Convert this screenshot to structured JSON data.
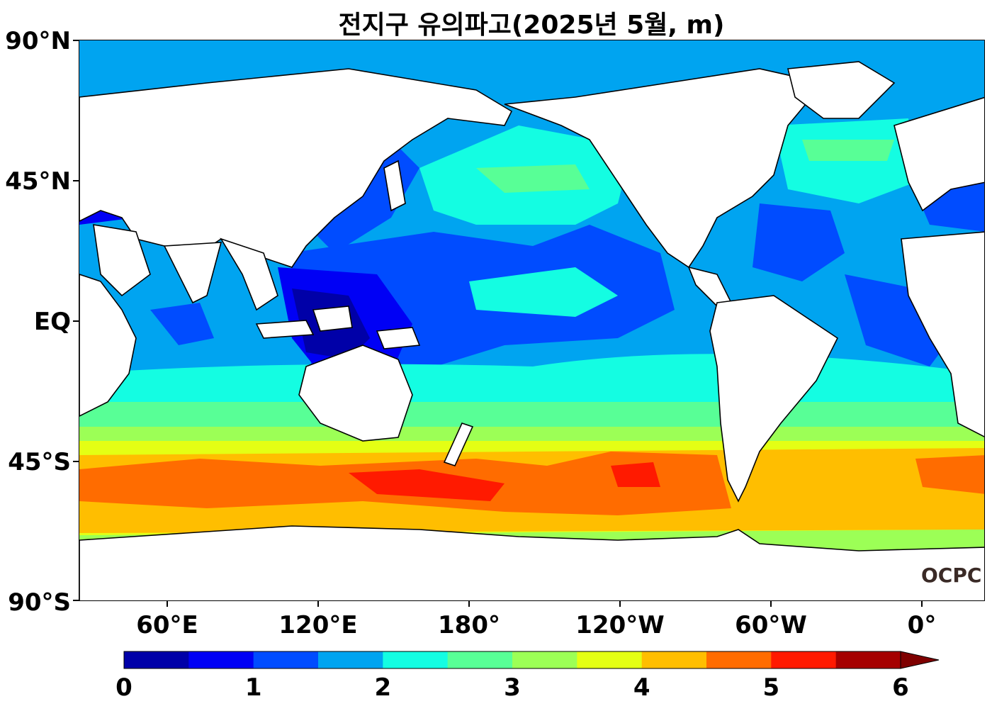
{
  "title": "전지구 유의파고(2025년 5월, m)",
  "map": {
    "latitude_labels": [
      "90°N",
      "45°N",
      "EQ",
      "45°S",
      "90°S"
    ],
    "longitude_labels": [
      "60°E",
      "120°E",
      "180°",
      "120°W",
      "60°W",
      "0°"
    ],
    "land_color": "#ffffff",
    "coastline_color": "#000000"
  },
  "colorbar": {
    "tick_labels": [
      "0",
      "1",
      "2",
      "3",
      "4",
      "5",
      "6"
    ],
    "levels": [
      0,
      0.5,
      1,
      1.5,
      2,
      2.5,
      3,
      3.5,
      4,
      4.5,
      5,
      5.5,
      6
    ],
    "colors": [
      "#0000a8",
      "#0000f5",
      "#004cff",
      "#00a4f0",
      "#14fde2",
      "#58ff96",
      "#9cff56",
      "#e4ff14",
      "#ffbe00",
      "#ff6c00",
      "#ff1a00",
      "#a50000"
    ],
    "extend": "max",
    "extend_color": "#7f0000"
  },
  "logo": "OCPC"
}
